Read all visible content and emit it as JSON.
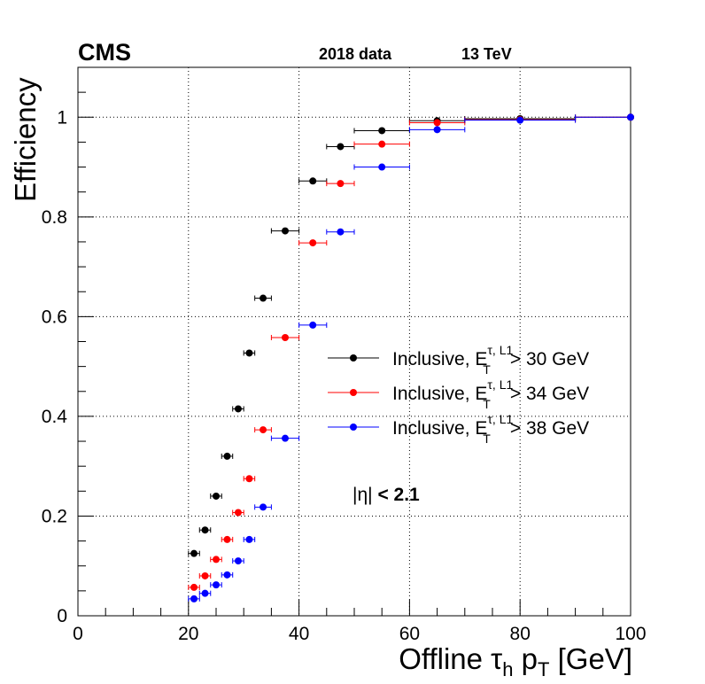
{
  "chart_data": {
    "type": "scatter",
    "title": "",
    "experiment": "CMS",
    "dataset_label": "2018 data",
    "energy_label": "13 TeV",
    "xlabel": "Offline τ_h p_T [GeV]",
    "xlabel_parts": {
      "main": "Offline ",
      "tau": "τ",
      "tau_sub": "h",
      "p": " p",
      "p_sub": "T",
      "unit": " [GeV]"
    },
    "ylabel": "Efficiency",
    "xlim": [
      0,
      100
    ],
    "ylim": [
      0,
      1.1
    ],
    "x_ticks": [
      0,
      20,
      40,
      60,
      80,
      100
    ],
    "y_ticks": [
      0,
      0.2,
      0.4,
      0.6,
      0.8,
      1
    ],
    "grid": true,
    "annotation": "|η| < 2.1",
    "annotation_parts": {
      "eta": "|η| ",
      "cut": "< 2.1"
    },
    "legend_position": "right",
    "series": [
      {
        "name": "Inclusive, E_T^{τ, L1} > 30 GeV",
        "legend_prefix": "Inclusive, E",
        "legend_sub": "T",
        "legend_sup": "τ, L1",
        "legend_suffix": "> 30 GeV",
        "color": "#000000",
        "points": [
          {
            "x": 21,
            "xlo": 20,
            "xhi": 22,
            "y": 0.125
          },
          {
            "x": 23,
            "xlo": 22,
            "xhi": 24,
            "y": 0.172
          },
          {
            "x": 25,
            "xlo": 24,
            "xhi": 26,
            "y": 0.24
          },
          {
            "x": 27,
            "xlo": 26,
            "xhi": 28,
            "y": 0.32
          },
          {
            "x": 29,
            "xlo": 28,
            "xhi": 30,
            "y": 0.415
          },
          {
            "x": 31,
            "xlo": 30,
            "xhi": 32,
            "y": 0.527
          },
          {
            "x": 33.5,
            "xlo": 32,
            "xhi": 35,
            "y": 0.637
          },
          {
            "x": 37.5,
            "xlo": 35,
            "xhi": 40,
            "y": 0.772
          },
          {
            "x": 42.5,
            "xlo": 40,
            "xhi": 45,
            "y": 0.872
          },
          {
            "x": 47.5,
            "xlo": 45,
            "xhi": 50,
            "y": 0.941
          },
          {
            "x": 55,
            "xlo": 50,
            "xhi": 60,
            "y": 0.973
          },
          {
            "x": 65,
            "xlo": 60,
            "xhi": 70,
            "y": 0.993
          },
          {
            "x": 80,
            "xlo": 70,
            "xhi": 90,
            "y": 0.997
          },
          {
            "x": 100,
            "xlo": 90,
            "xhi": 110,
            "y": 1.0
          }
        ]
      },
      {
        "name": "Inclusive, E_T^{τ, L1} > 34 GeV",
        "legend_prefix": "Inclusive, E",
        "legend_sub": "T",
        "legend_sup": "τ, L1",
        "legend_suffix": "> 34 GeV",
        "color": "#ff0000",
        "points": [
          {
            "x": 21,
            "xlo": 20,
            "xhi": 22,
            "y": 0.057
          },
          {
            "x": 23,
            "xlo": 22,
            "xhi": 24,
            "y": 0.08
          },
          {
            "x": 25,
            "xlo": 24,
            "xhi": 26,
            "y": 0.113
          },
          {
            "x": 27,
            "xlo": 26,
            "xhi": 28,
            "y": 0.153
          },
          {
            "x": 29,
            "xlo": 28,
            "xhi": 30,
            "y": 0.207
          },
          {
            "x": 31,
            "xlo": 30,
            "xhi": 32,
            "y": 0.275
          },
          {
            "x": 33.5,
            "xlo": 32,
            "xhi": 35,
            "y": 0.373
          },
          {
            "x": 37.5,
            "xlo": 35,
            "xhi": 40,
            "y": 0.558
          },
          {
            "x": 42.5,
            "xlo": 40,
            "xhi": 45,
            "y": 0.748
          },
          {
            "x": 47.5,
            "xlo": 45,
            "xhi": 50,
            "y": 0.867
          },
          {
            "x": 55,
            "xlo": 50,
            "xhi": 60,
            "y": 0.946
          },
          {
            "x": 65,
            "xlo": 60,
            "xhi": 70,
            "y": 0.989
          },
          {
            "x": 80,
            "xlo": 70,
            "xhi": 90,
            "y": 0.995
          },
          {
            "x": 100,
            "xlo": 90,
            "xhi": 110,
            "y": 1.0
          }
        ]
      },
      {
        "name": "Inclusive, E_T^{τ, L1} > 38 GeV",
        "legend_prefix": "Inclusive, E",
        "legend_sub": "T",
        "legend_sup": "τ, L1",
        "legend_suffix": "> 38 GeV",
        "color": "#0000ff",
        "points": [
          {
            "x": 21,
            "xlo": 20,
            "xhi": 22,
            "y": 0.034
          },
          {
            "x": 23,
            "xlo": 22,
            "xhi": 24,
            "y": 0.045
          },
          {
            "x": 25,
            "xlo": 24,
            "xhi": 26,
            "y": 0.062
          },
          {
            "x": 27,
            "xlo": 26,
            "xhi": 28,
            "y": 0.082
          },
          {
            "x": 29,
            "xlo": 28,
            "xhi": 30,
            "y": 0.11
          },
          {
            "x": 31,
            "xlo": 30,
            "xhi": 32,
            "y": 0.153
          },
          {
            "x": 33.5,
            "xlo": 32,
            "xhi": 35,
            "y": 0.218
          },
          {
            "x": 37.5,
            "xlo": 35,
            "xhi": 40,
            "y": 0.356
          },
          {
            "x": 42.5,
            "xlo": 40,
            "xhi": 45,
            "y": 0.583
          },
          {
            "x": 47.5,
            "xlo": 45,
            "xhi": 50,
            "y": 0.77
          },
          {
            "x": 55,
            "xlo": 50,
            "xhi": 60,
            "y": 0.9
          },
          {
            "x": 65,
            "xlo": 60,
            "xhi": 70,
            "y": 0.975
          },
          {
            "x": 80,
            "xlo": 70,
            "xhi": 90,
            "y": 0.994
          },
          {
            "x": 100,
            "xlo": 90,
            "xhi": 110,
            "y": 1.0
          }
        ]
      }
    ]
  }
}
